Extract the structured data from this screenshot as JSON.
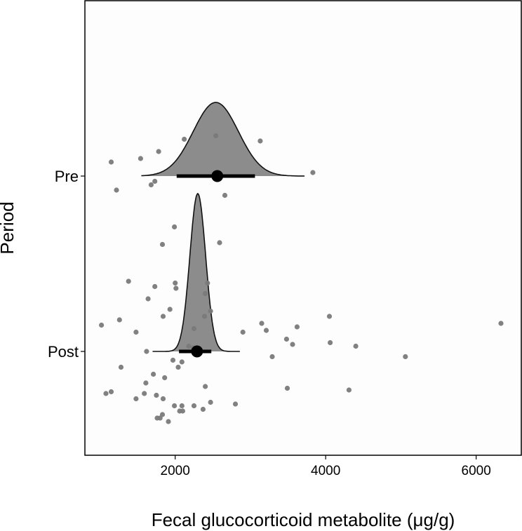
{
  "chart_data": {
    "type": "raincloud",
    "xlabel": "Fecal glucocorticoid metabolite (μg/g)",
    "ylabel": "Period",
    "xlim": [
      800,
      6600
    ],
    "xticks": [
      2000,
      4000,
      6000
    ],
    "xtick_labels": [
      "2000",
      "4000",
      "6000"
    ],
    "categories": [
      "Pre",
      "Post"
    ],
    "grid": false,
    "colors": {
      "density_fill": "#8c8c8c",
      "points": "#7a7a7a",
      "summary": "#000000"
    },
    "series": [
      {
        "category": "Pre",
        "density": {
          "mean": 2540,
          "sd": 300,
          "min": 1550,
          "max": 3720,
          "relative_height": 0.42
        },
        "summary": {
          "point": 2560,
          "interval": [
            2020,
            3060
          ]
        },
        "points": [
          [
            1150,
            0.08
          ],
          [
            1540,
            0.1
          ],
          [
            1780,
            0.14
          ],
          [
            2120,
            0.21
          ],
          [
            2540,
            0.23
          ],
          [
            3130,
            0.2
          ],
          [
            3830,
            0.02
          ],
          [
            1220,
            -0.08
          ],
          [
            1680,
            -0.05
          ],
          [
            1730,
            -0.03
          ],
          [
            2660,
            -0.11
          ]
        ]
      },
      {
        "category": "Post",
        "density": {
          "mean": 2300,
          "sd": 105,
          "min": 1700,
          "max": 2860,
          "relative_height": 0.9
        },
        "summary": {
          "point": 2290,
          "interval": [
            2050,
            2480
          ]
        },
        "points": [
          [
            1990,
            0.71
          ],
          [
            1830,
            0.61
          ],
          [
            2590,
            0.62
          ],
          [
            1380,
            0.4
          ],
          [
            1730,
            0.37
          ],
          [
            2000,
            0.39
          ],
          [
            2430,
            0.39
          ],
          [
            1640,
            0.3
          ],
          [
            2010,
            0.36
          ],
          [
            2400,
            0.33
          ],
          [
            1930,
            0.24
          ],
          [
            2470,
            0.23
          ],
          [
            1260,
            0.18
          ],
          [
            1840,
            0.2
          ],
          [
            2390,
            0.2
          ],
          [
            2250,
            0.13
          ],
          [
            1020,
            0.15
          ],
          [
            1480,
            0.11
          ],
          [
            2900,
            0.11
          ],
          [
            3150,
            0.16
          ],
          [
            3210,
            0.12
          ],
          [
            3620,
            0.14
          ],
          [
            4050,
            0.2
          ],
          [
            6330,
            0.16
          ],
          [
            3480,
            0.07
          ],
          [
            3560,
            0.04
          ],
          [
            4060,
            0.05
          ],
          [
            4400,
            0.03
          ],
          [
            2180,
            0.03
          ],
          [
            2240,
            0.02
          ],
          [
            2310,
            0.0
          ],
          [
            1620,
            0.0
          ],
          [
            3290,
            -0.03
          ],
          [
            5060,
            -0.03
          ],
          [
            1970,
            -0.05
          ],
          [
            2090,
            -0.06
          ],
          [
            2040,
            -0.09
          ],
          [
            1280,
            -0.09
          ],
          [
            1710,
            -0.13
          ],
          [
            1860,
            -0.15
          ],
          [
            1610,
            -0.18
          ],
          [
            2400,
            -0.2
          ],
          [
            3490,
            -0.21
          ],
          [
            4310,
            -0.22
          ],
          [
            1080,
            -0.24
          ],
          [
            1150,
            -0.23
          ],
          [
            1590,
            -0.24
          ],
          [
            1750,
            -0.25
          ],
          [
            1840,
            -0.27
          ],
          [
            1480,
            -0.27
          ],
          [
            2470,
            -0.29
          ],
          [
            1990,
            -0.31
          ],
          [
            2250,
            -0.31
          ],
          [
            2090,
            -0.31
          ],
          [
            2800,
            -0.3
          ],
          [
            2060,
            -0.34
          ],
          [
            2100,
            -0.34
          ],
          [
            2370,
            -0.33
          ],
          [
            1830,
            -0.36
          ],
          [
            1760,
            -0.38
          ],
          [
            1800,
            -0.38
          ],
          [
            1910,
            -0.4
          ]
        ]
      }
    ]
  }
}
